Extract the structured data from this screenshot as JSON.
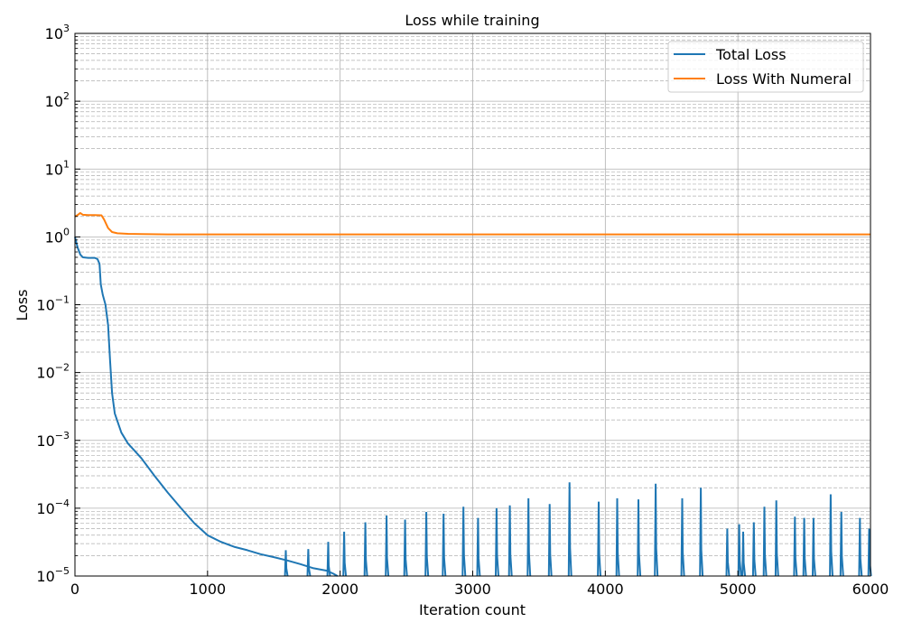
{
  "chart_data": {
    "type": "line",
    "title": "Loss while training",
    "xlabel": "Iteration count",
    "ylabel": "Loss",
    "xlim": [
      0,
      6000
    ],
    "ylim": [
      1e-05,
      1000
    ],
    "yscale": "log",
    "grid": "major and minor",
    "legend_position": "top-right",
    "x_ticks": [
      0,
      1000,
      2000,
      3000,
      4000,
      5000,
      6000
    ],
    "x_tick_labels": [
      "0",
      "1000",
      "2000",
      "3000",
      "4000",
      "5000",
      "6000"
    ],
    "y_tick_labels": [
      {
        "base": "10",
        "exp": "−5"
      },
      {
        "base": "10",
        "exp": "−4"
      },
      {
        "base": "10",
        "exp": "−3"
      },
      {
        "base": "10",
        "exp": "−2"
      },
      {
        "base": "10",
        "exp": "−1"
      },
      {
        "base": "10",
        "exp": "0"
      },
      {
        "base": "10",
        "exp": "1"
      },
      {
        "base": "10",
        "exp": "2"
      },
      {
        "base": "10",
        "exp": "3"
      }
    ],
    "series": [
      {
        "name": "Total Loss",
        "color": "#1f77b4",
        "points": [
          [
            0,
            1.0
          ],
          [
            20,
            0.7
          ],
          [
            40,
            0.55
          ],
          [
            60,
            0.5
          ],
          [
            100,
            0.49
          ],
          [
            150,
            0.49
          ],
          [
            170,
            0.47
          ],
          [
            185,
            0.4
          ],
          [
            195,
            0.2
          ],
          [
            210,
            0.14
          ],
          [
            230,
            0.1
          ],
          [
            250,
            0.05
          ],
          [
            265,
            0.015
          ],
          [
            280,
            0.005
          ],
          [
            300,
            0.0025
          ],
          [
            350,
            0.0013
          ],
          [
            400,
            0.0009
          ],
          [
            500,
            0.00055
          ],
          [
            600,
            0.0003
          ],
          [
            700,
            0.00017
          ],
          [
            800,
            0.0001
          ],
          [
            900,
            6e-05
          ],
          [
            1000,
            4e-05
          ],
          [
            1100,
            3.2e-05
          ],
          [
            1200,
            2.7e-05
          ],
          [
            1300,
            2.4e-05
          ],
          [
            1400,
            2.1e-05
          ],
          [
            1500,
            1.9e-05
          ],
          [
            1600,
            1.7e-05
          ],
          [
            1700,
            1.5e-05
          ],
          [
            1800,
            1.3e-05
          ],
          [
            1900,
            1.2e-05
          ],
          [
            1950,
            1.08e-05
          ],
          [
            1980,
            1e-05
          ]
        ],
        "spikes": [
          [
            1590,
            2.4e-05
          ],
          [
            1760,
            2.5e-05
          ],
          [
            1910,
            3.2e-05
          ],
          [
            2030,
            4.5e-05
          ],
          [
            2190,
            6.2e-05
          ],
          [
            2350,
            7.8e-05
          ],
          [
            2490,
            6.8e-05
          ],
          [
            2650,
            8.8e-05
          ],
          [
            2780,
            8.3e-05
          ],
          [
            2930,
            0.000105
          ],
          [
            3040,
            7.2e-05
          ],
          [
            3180,
            0.0001
          ],
          [
            3280,
            0.00011
          ],
          [
            3420,
            0.00014
          ],
          [
            3580,
            0.000115
          ],
          [
            3730,
            0.00024
          ],
          [
            3950,
            0.000125
          ],
          [
            4090,
            0.00014
          ],
          [
            4250,
            0.000135
          ],
          [
            4380,
            0.00023
          ],
          [
            4580,
            0.00014
          ],
          [
            4720,
            0.0002
          ],
          [
            4920,
            5e-05
          ],
          [
            5010,
            5.8e-05
          ],
          [
            5040,
            4.5e-05
          ],
          [
            5120,
            6.2e-05
          ],
          [
            5200,
            0.000105
          ],
          [
            5290,
            0.00013
          ],
          [
            5430,
            7.5e-05
          ],
          [
            5500,
            7.2e-05
          ],
          [
            5570,
            7.2e-05
          ],
          [
            5700,
            0.00016
          ],
          [
            5780,
            8.8e-05
          ],
          [
            5920,
            7.2e-05
          ],
          [
            5990,
            5e-05
          ]
        ]
      },
      {
        "name": "Loss With Numeral",
        "color": "#ff7f0e",
        "points": [
          [
            0,
            2.0
          ],
          [
            20,
            2.1
          ],
          [
            40,
            2.25
          ],
          [
            60,
            2.12
          ],
          [
            100,
            2.1
          ],
          [
            150,
            2.1
          ],
          [
            200,
            2.08
          ],
          [
            220,
            1.8
          ],
          [
            250,
            1.35
          ],
          [
            280,
            1.18
          ],
          [
            320,
            1.13
          ],
          [
            400,
            1.11
          ],
          [
            500,
            1.1
          ],
          [
            700,
            1.09
          ],
          [
            1000,
            1.09
          ],
          [
            2000,
            1.09
          ],
          [
            3000,
            1.09
          ],
          [
            4000,
            1.09
          ],
          [
            5000,
            1.09
          ],
          [
            6000,
            1.09
          ]
        ]
      }
    ]
  }
}
